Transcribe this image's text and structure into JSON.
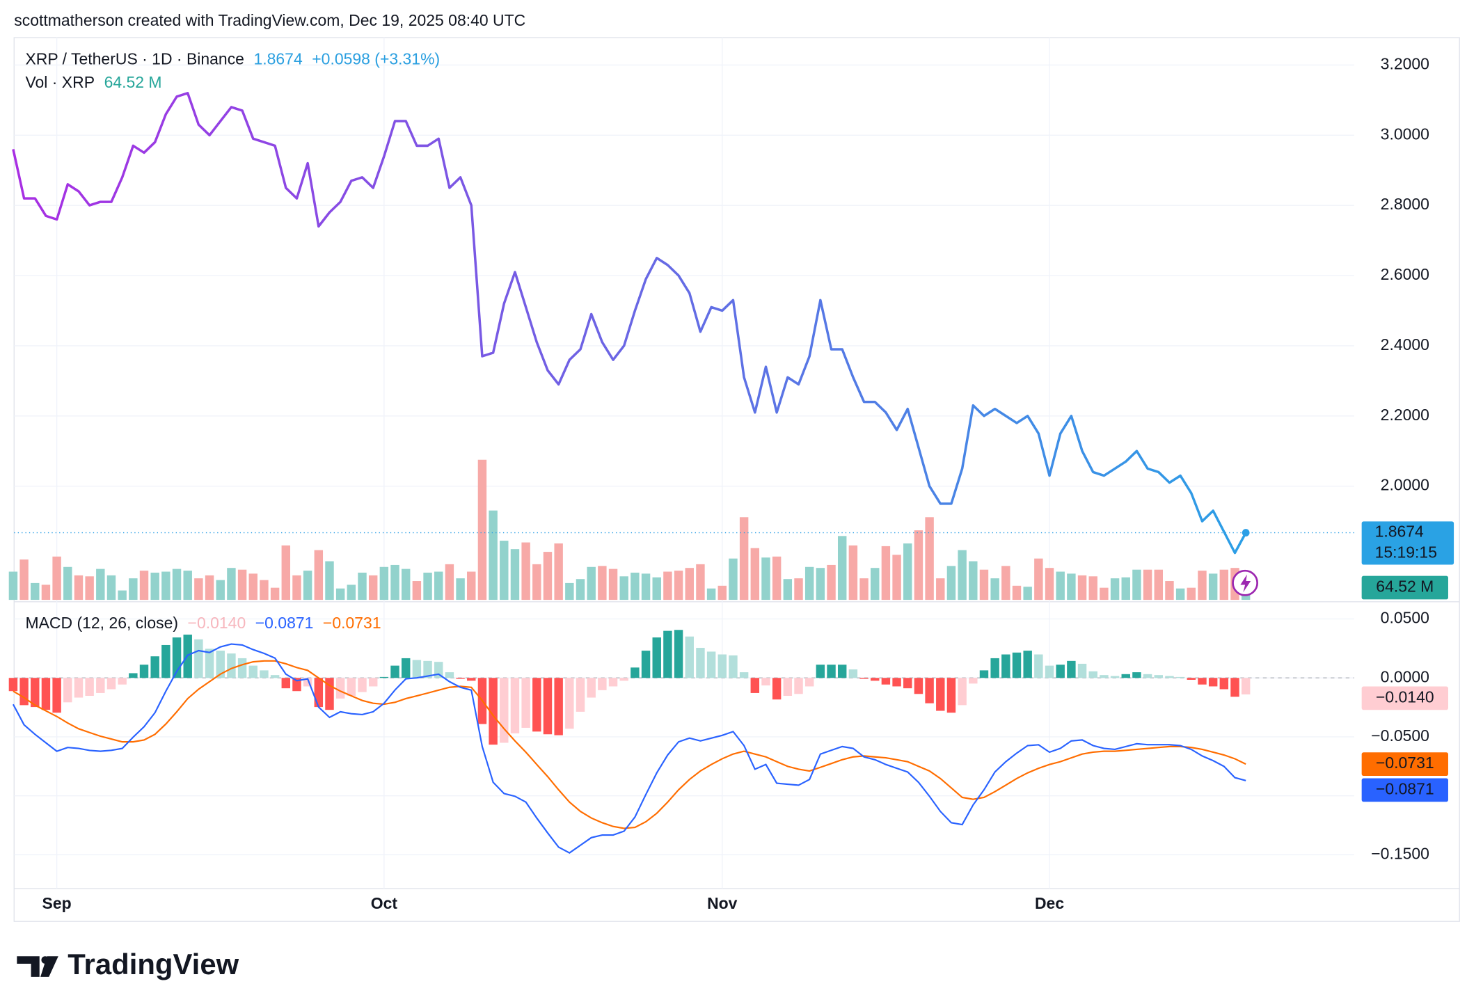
{
  "header": {
    "attribution": "scottmatherson created with TradingView.com, Dec 19, 2025 08:40 UTC"
  },
  "footer": {
    "logo": "TradingView"
  },
  "chart_data": [
    {
      "type": "line",
      "title": "XRP / TetherUS · 1D · Binance",
      "change": "+0.0598 (+3.31%)",
      "countdown": "15:19:15",
      "categories": [
        null,
        null,
        null,
        null,
        "Sep",
        null,
        null,
        null,
        null,
        null,
        null,
        null,
        null,
        null,
        null,
        null,
        null,
        null,
        null,
        null,
        null,
        null,
        null,
        null,
        null,
        null,
        null,
        null,
        null,
        null,
        null,
        null,
        null,
        null,
        "Oct",
        null,
        null,
        null,
        null,
        null,
        null,
        null,
        null,
        null,
        null,
        null,
        null,
        null,
        null,
        null,
        null,
        null,
        null,
        null,
        null,
        null,
        null,
        null,
        null,
        null,
        null,
        null,
        null,
        null,
        null,
        "Nov",
        null,
        null,
        null,
        null,
        null,
        null,
        null,
        null,
        null,
        null,
        null,
        null,
        null,
        null,
        null,
        null,
        null,
        null,
        null,
        null,
        null,
        null,
        null,
        null,
        null,
        null,
        null,
        null,
        null,
        "Dec",
        null,
        null,
        null,
        null,
        null,
        null,
        null,
        null,
        null,
        null,
        null,
        null,
        null,
        null,
        null,
        null,
        null,
        null
      ],
      "series": [
        {
          "name": "XRP / TetherUS",
          "colors": [
            "#a82ee3",
            "#2b9fe6"
          ],
          "values": [
            2.96,
            2.82,
            2.82,
            2.77,
            2.76,
            2.86,
            2.84,
            2.8,
            2.81,
            2.81,
            2.88,
            2.97,
            2.95,
            2.98,
            3.06,
            3.11,
            3.12,
            3.03,
            3.0,
            3.04,
            3.08,
            3.07,
            2.99,
            2.98,
            2.97,
            2.85,
            2.82,
            2.92,
            2.74,
            2.78,
            2.81,
            2.87,
            2.88,
            2.85,
            2.94,
            3.04,
            3.04,
            2.97,
            2.97,
            2.99,
            2.85,
            2.88,
            2.8,
            2.37,
            2.38,
            2.52,
            2.61,
            2.51,
            2.41,
            2.33,
            2.29,
            2.36,
            2.39,
            2.49,
            2.41,
            2.36,
            2.4,
            2.5,
            2.59,
            2.65,
            2.63,
            2.6,
            2.55,
            2.44,
            2.51,
            2.5,
            2.53,
            2.31,
            2.21,
            2.34,
            2.21,
            2.31,
            2.29,
            2.37,
            2.53,
            2.39,
            2.39,
            2.31,
            2.24,
            2.24,
            2.21,
            2.16,
            2.22,
            2.11,
            2.0,
            1.95,
            1.95,
            2.05,
            2.23,
            2.2,
            2.22,
            2.2,
            2.18,
            2.2,
            2.15,
            2.03,
            2.15,
            2.2,
            2.1,
            2.04,
            2.03,
            2.05,
            2.07,
            2.1,
            2.05,
            2.04,
            2.01,
            2.03,
            1.98,
            1.9,
            1.93,
            1.87,
            1.81,
            1.8674
          ]
        }
      ],
      "volume": {
        "name": "Vol · XRP",
        "last_label": "64.52 M",
        "up_color": "#92d2cc",
        "down_color": "#f7a9a7",
        "values": [
          114,
          163,
          68,
          61,
          175,
          133,
          99,
          95,
          125,
          99,
          38,
          87,
          118,
          110,
          114,
          125,
          118,
          87,
          99,
          80,
          129,
          122,
          106,
          80,
          49,
          220,
          99,
          118,
          201,
          156,
          46,
          61,
          110,
          99,
          133,
          141,
          125,
          76,
          110,
          114,
          144,
          87,
          114,
          566,
          361,
          239,
          205,
          232,
          144,
          194,
          228,
          68,
          84,
          133,
          137,
          125,
          95,
          110,
          106,
          91,
          114,
          118,
          129,
          144,
          46,
          57,
          167,
          334,
          209,
          171,
          175,
          84,
          87,
          133,
          129,
          141,
          258,
          220,
          87,
          129,
          217,
          182,
          228,
          281,
          334,
          87,
          137,
          201,
          156,
          122,
          87,
          137,
          57,
          53,
          167,
          129,
          114,
          106,
          99,
          95,
          49,
          87,
          91,
          122,
          122,
          122,
          76,
          46,
          49,
          118,
          106,
          122,
          129,
          64.52
        ]
      },
      "ylim": [
        1.676,
        3.278
      ],
      "yticks": [
        {
          "value": 2,
          "label": "2.0000"
        },
        {
          "value": 2.2,
          "label": "2.2000"
        },
        {
          "value": 2.4,
          "label": "2.4000"
        },
        {
          "value": 2.6,
          "label": "2.6000"
        },
        {
          "value": 2.8,
          "label": "2.8000"
        },
        {
          "value": 3,
          "label": "3.0000"
        },
        {
          "value": 3.2,
          "label": "3.2000"
        }
      ],
      "grid": true
    },
    {
      "type": "macd",
      "title": "MACD (12, 26, close)",
      "ylim": [
        -0.1786,
        0.0606
      ],
      "yticks": [
        {
          "value": -0.15,
          "label": "−0.1500"
        },
        {
          "value": -0.1,
          "label": "−0.1000"
        },
        {
          "value": -0.05,
          "label": "−0.0500"
        },
        {
          "value": 0,
          "label": "0.0000"
        },
        {
          "value": 0.05,
          "label": "0.0500"
        }
      ],
      "grid": true,
      "series": [
        {
          "type": "histogram",
          "last_label": "−0.0140",
          "colors": {
            "grow_above": "#26a69a",
            "fall_above": "#b2dfdb",
            "grow_below": "#ffcdd2",
            "fall_below": "#ff5252"
          },
          "values": [
            -0.0112,
            -0.0231,
            -0.0247,
            -0.0271,
            -0.0295,
            -0.0207,
            -0.0167,
            -0.0152,
            -0.0128,
            -0.0096,
            -0.0056,
            0.004,
            0.0112,
            0.0183,
            0.0279,
            0.0343,
            0.0367,
            0.0327,
            0.0247,
            0.0231,
            0.0207,
            0.0167,
            0.0104,
            0.0064,
            0.0024,
            -0.0088,
            -0.0112,
            -0.0072,
            -0.0247,
            -0.0271,
            -0.0175,
            -0.0152,
            -0.012,
            -0.0072,
            0.0008,
            0.0104,
            0.0167,
            0.0152,
            0.0144,
            0.0136,
            0.0048,
            -0.0008,
            -0.0024,
            -0.0391,
            -0.0566,
            -0.055,
            -0.047,
            -0.0423,
            -0.0455,
            -0.0478,
            -0.0486,
            -0.0431,
            -0.0287,
            -0.0167,
            -0.0104,
            -0.0072,
            -0.0024,
            0.0088,
            0.0231,
            0.0343,
            0.0399,
            0.0407,
            0.0351,
            0.0255,
            0.0223,
            0.0199,
            0.0191,
            0.0048,
            -0.0128,
            -0.0064,
            -0.0183,
            -0.0152,
            -0.0136,
            -0.0072,
            0.0112,
            0.0112,
            0.0112,
            0.0072,
            -0.0008,
            -0.0024,
            -0.0056,
            -0.0072,
            -0.0088,
            -0.0136,
            -0.0215,
            -0.0279,
            -0.0295,
            -0.0231,
            -0.0048,
            0.0064,
            0.0167,
            0.0199,
            0.0215,
            0.0231,
            0.0199,
            0.0104,
            0.0112,
            0.0144,
            0.012,
            0.0056,
            0.0024,
            0.0016,
            0.0032,
            0.0048,
            0.0032,
            0.0024,
            0.0016,
            0.0008,
            -0.0016,
            -0.0056,
            -0.0072,
            -0.0096,
            -0.016,
            -0.014
          ]
        },
        {
          "type": "line",
          "color": "#2962ff",
          "last_label": "−0.0871",
          "values": [
            -0.0224,
            -0.0398,
            -0.0478,
            -0.055,
            -0.0622,
            -0.059,
            -0.0598,
            -0.0615,
            -0.0622,
            -0.0614,
            -0.0598,
            -0.0502,
            -0.0414,
            -0.0295,
            -0.0112,
            0.0056,
            0.0192,
            0.0231,
            0.0215,
            0.0263,
            0.0287,
            0.0279,
            0.024,
            0.0208,
            0.0168,
            0.0032,
            -0.0024,
            -0.0008,
            -0.0247,
            -0.0335,
            -0.0287,
            -0.0304,
            -0.0311,
            -0.0287,
            -0.0215,
            -0.0103,
            -0.0008,
            0.0,
            0.0016,
            0.0032,
            -0.0032,
            -0.008,
            -0.0104,
            -0.0582,
            -0.0885,
            -0.0981,
            -0.1004,
            -0.1053,
            -0.1189,
            -0.1315,
            -0.1435,
            -0.1484,
            -0.1419,
            -0.1355,
            -0.1332,
            -0.1332,
            -0.13,
            -0.118,
            -0.0989,
            -0.0805,
            -0.0654,
            -0.0542,
            -0.051,
            -0.0534,
            -0.0511,
            -0.0487,
            -0.0455,
            -0.0574,
            -0.0774,
            -0.0734,
            -0.0893,
            -0.0902,
            -0.091,
            -0.0861,
            -0.0646,
            -0.0614,
            -0.0582,
            -0.0598,
            -0.067,
            -0.0694,
            -0.0734,
            -0.0766,
            -0.0798,
            -0.0886,
            -0.1004,
            -0.1132,
            -0.1228,
            -0.1244,
            -0.1077,
            -0.0949,
            -0.0798,
            -0.071,
            -0.0638,
            -0.0574,
            -0.0567,
            -0.063,
            -0.0598,
            -0.0534,
            -0.0526,
            -0.0574,
            -0.0598,
            -0.0606,
            -0.0582,
            -0.0558,
            -0.0566,
            -0.0566,
            -0.0566,
            -0.0574,
            -0.0606,
            -0.0662,
            -0.0702,
            -0.075,
            -0.0846,
            -0.0871
          ]
        },
        {
          "type": "line",
          "color": "#ff6d00",
          "last_label": "−0.0731",
          "values": [
            -0.0112,
            -0.0167,
            -0.0231,
            -0.0279,
            -0.0327,
            -0.0383,
            -0.0431,
            -0.0463,
            -0.0494,
            -0.0518,
            -0.0542,
            -0.0542,
            -0.0526,
            -0.0478,
            -0.0391,
            -0.0287,
            -0.0175,
            -0.0096,
            -0.0032,
            0.0032,
            0.008,
            0.0112,
            0.0136,
            0.0144,
            0.0144,
            0.012,
            0.0088,
            0.0064,
            0.0,
            -0.0064,
            -0.0112,
            -0.0152,
            -0.0191,
            -0.0215,
            -0.0223,
            -0.0207,
            -0.0175,
            -0.0152,
            -0.0128,
            -0.0104,
            -0.008,
            -0.0072,
            -0.008,
            -0.0191,
            -0.0319,
            -0.0431,
            -0.0534,
            -0.063,
            -0.0734,
            -0.0837,
            -0.0949,
            -0.1053,
            -0.1132,
            -0.1188,
            -0.1228,
            -0.126,
            -0.1276,
            -0.1268,
            -0.122,
            -0.1148,
            -0.1053,
            -0.0949,
            -0.0861,
            -0.0789,
            -0.0734,
            -0.0686,
            -0.0646,
            -0.0622,
            -0.0646,
            -0.067,
            -0.071,
            -0.075,
            -0.0774,
            -0.0789,
            -0.0758,
            -0.0726,
            -0.0694,
            -0.067,
            -0.0662,
            -0.067,
            -0.0678,
            -0.0694,
            -0.071,
            -0.075,
            -0.0789,
            -0.0853,
            -0.0933,
            -0.1013,
            -0.1029,
            -0.1013,
            -0.0965,
            -0.0909,
            -0.0853,
            -0.0805,
            -0.0766,
            -0.0734,
            -0.071,
            -0.0678,
            -0.0646,
            -0.063,
            -0.0622,
            -0.0622,
            -0.0614,
            -0.0606,
            -0.0598,
            -0.059,
            -0.0582,
            -0.0582,
            -0.059,
            -0.0606,
            -0.063,
            -0.0654,
            -0.0686,
            -0.0731
          ]
        }
      ]
    }
  ]
}
